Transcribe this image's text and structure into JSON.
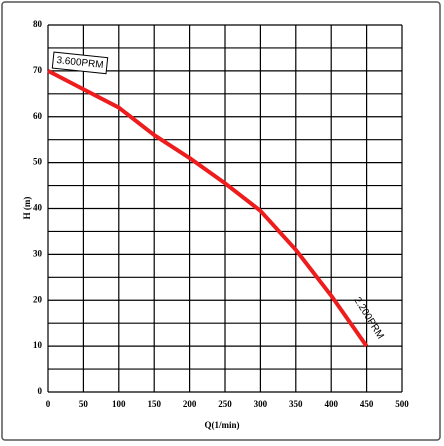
{
  "chart_data": {
    "type": "line",
    "x_label": "Q(1/min)",
    "y_label": "H (m)",
    "x": [
      0,
      50,
      100,
      150,
      200,
      250,
      300,
      350,
      400,
      450
    ],
    "series": [
      {
        "name": "3.600PRM",
        "color": "#ee1c1c",
        "values": [
          70,
          66,
          62,
          56,
          51,
          45.5,
          39.5,
          31,
          21,
          10
        ]
      }
    ],
    "annotations": [
      {
        "text": "3.600PRM",
        "x": 0,
        "y": 70
      },
      {
        "text": "2.200PRM",
        "x": 450,
        "y": 10
      }
    ],
    "xlim": [
      0,
      500
    ],
    "xticks": [
      0,
      50,
      100,
      150,
      200,
      250,
      300,
      350,
      400,
      450,
      500
    ],
    "ylim": [
      0,
      80
    ],
    "yticks": [
      0,
      10,
      20,
      30,
      40,
      50,
      60,
      70,
      80
    ],
    "ygrid": [
      5,
      15,
      25,
      35,
      45,
      55,
      65,
      75
    ],
    "grid": true
  }
}
